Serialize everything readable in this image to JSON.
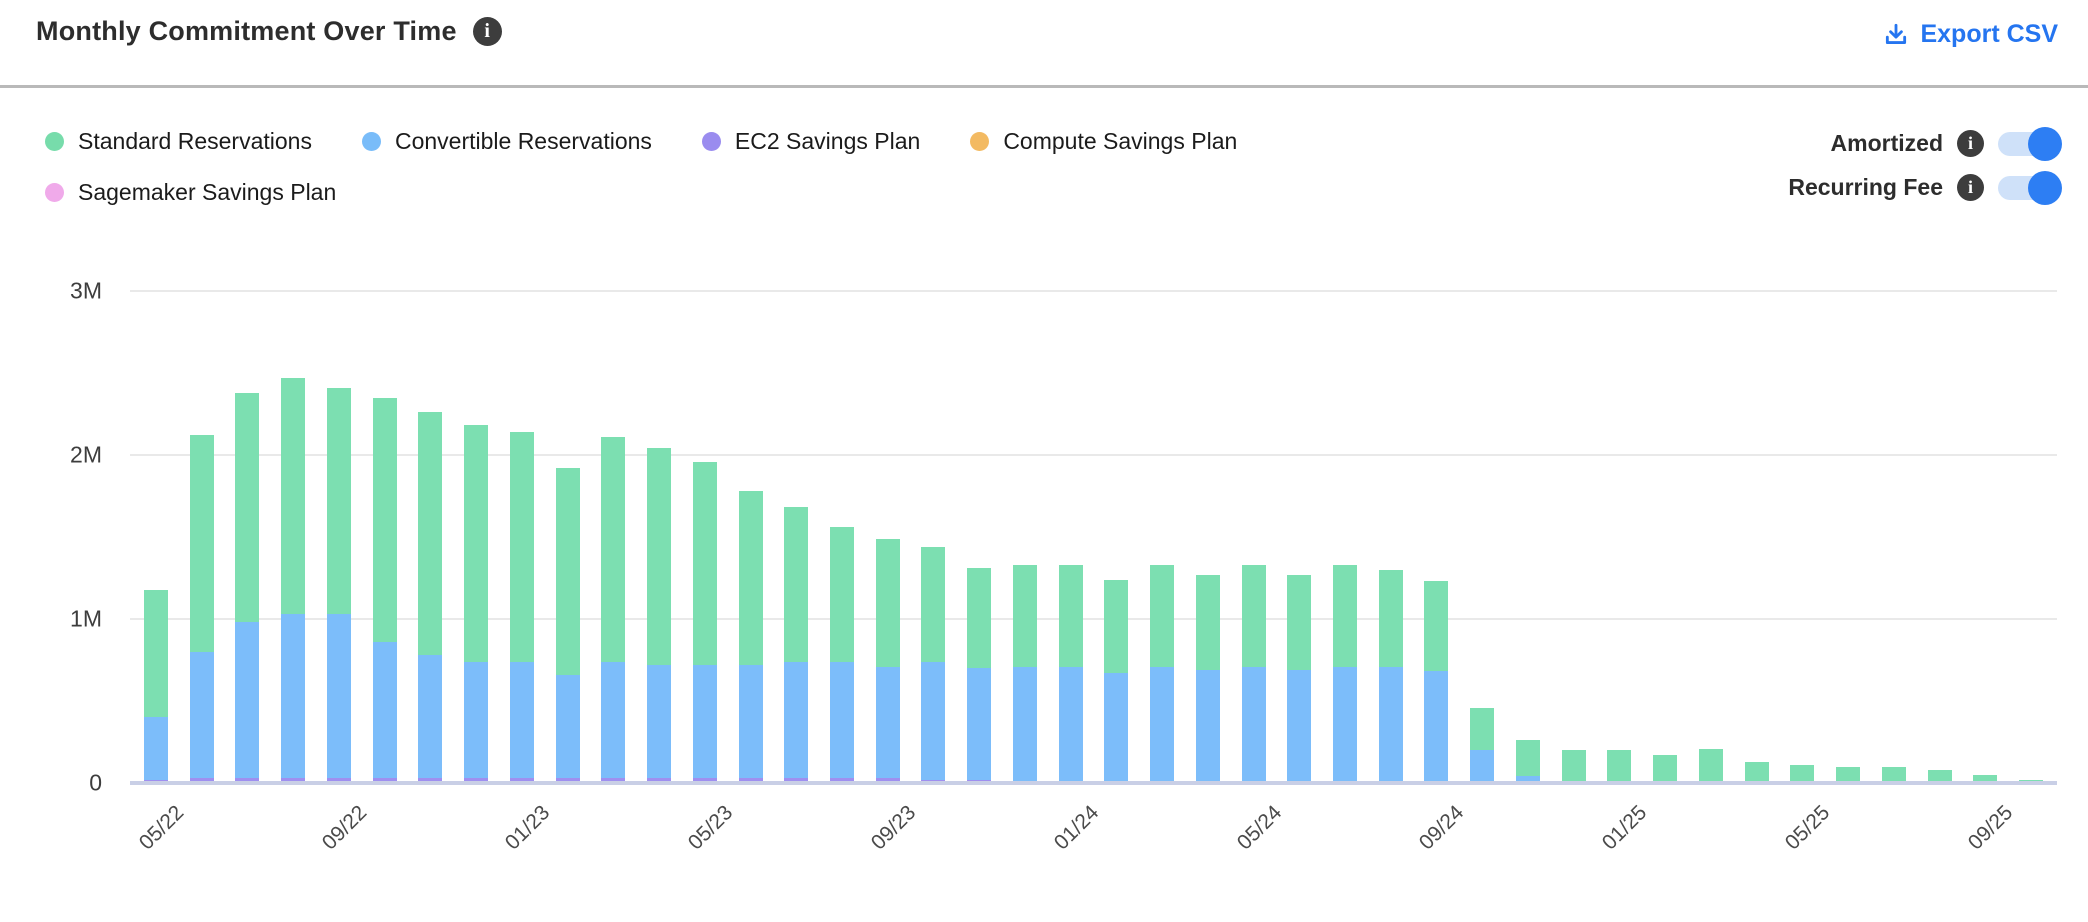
{
  "header": {
    "title": "Monthly Commitment Over Time",
    "export_label": "Export CSV"
  },
  "legend": [
    {
      "label": "Standard Reservations",
      "color": "#77dcab"
    },
    {
      "label": "Convertible Reservations",
      "color": "#79bcf9"
    },
    {
      "label": "EC2 Savings Plan",
      "color": "#9a8cef"
    },
    {
      "label": "Compute Savings Plan",
      "color": "#f3ba62"
    },
    {
      "label": "Sagemaker Savings Plan",
      "color": "#f0aaea"
    }
  ],
  "toggles": [
    {
      "label": "Amortized",
      "on": true
    },
    {
      "label": "Recurring Fee",
      "on": true
    }
  ],
  "toggle_colors": {
    "track": "#cfe1f9",
    "knob": "#2d7ef3"
  },
  "accent_colors": {
    "link_blue": "#2575f0",
    "info_icon_bg": "#3d3d3d"
  },
  "chart_data": {
    "type": "bar",
    "stacked": true,
    "values_unit": "millions",
    "ylim": [
      0,
      3000000
    ],
    "grid": true,
    "y_ticks": [
      {
        "label": "3M",
        "value": 3
      },
      {
        "label": "2M",
        "value": 2
      },
      {
        "label": "1M",
        "value": 1
      },
      {
        "label": "0",
        "value": 0
      }
    ],
    "x": [
      "05/22",
      "06/22",
      "07/22",
      "08/22",
      "09/22",
      "10/22",
      "11/22",
      "12/22",
      "01/23",
      "02/23",
      "03/23",
      "04/23",
      "05/23",
      "06/23",
      "07/23",
      "08/23",
      "09/23",
      "10/23",
      "11/23",
      "12/23",
      "01/24",
      "02/24",
      "03/24",
      "04/24",
      "05/24",
      "06/24",
      "07/24",
      "08/24",
      "09/24",
      "10/24",
      "11/24",
      "12/24",
      "01/25",
      "02/25",
      "03/25",
      "04/25",
      "05/25",
      "06/25",
      "07/25",
      "08/25",
      "09/25",
      "10/25"
    ],
    "x_tick_indices": [
      0,
      4,
      8,
      12,
      16,
      20,
      24,
      28,
      32,
      36,
      40
    ],
    "stack_order_note": "series listed bottom-to-top of stack",
    "series": [
      {
        "name": "EC2 Savings Plan",
        "color": "#9f8ff0",
        "values": [
          0.02,
          0.03,
          0.03,
          0.03,
          0.03,
          0.03,
          0.03,
          0.03,
          0.03,
          0.03,
          0.03,
          0.03,
          0.03,
          0.03,
          0.03,
          0.03,
          0.03,
          0.02,
          0.02,
          0,
          0,
          0,
          0,
          0,
          0,
          0,
          0,
          0,
          0,
          0,
          0,
          0,
          0,
          0,
          0,
          0,
          0,
          0,
          0,
          0,
          0,
          0
        ]
      },
      {
        "name": "Convertible Reservations",
        "color": "#7cbdfa",
        "values": [
          0.38,
          0.77,
          0.95,
          1.0,
          1.0,
          0.83,
          0.75,
          0.71,
          0.71,
          0.63,
          0.71,
          0.69,
          0.69,
          0.69,
          0.71,
          0.71,
          0.68,
          0.72,
          0.68,
          0.71,
          0.71,
          0.67,
          0.71,
          0.69,
          0.71,
          0.69,
          0.71,
          0.71,
          0.68,
          0.2,
          0.04,
          0,
          0,
          0,
          0,
          0,
          0,
          0,
          0,
          0,
          0,
          0
        ]
      },
      {
        "name": "Standard Reservations",
        "color": "#7cdfb1",
        "values": [
          0.78,
          1.32,
          1.4,
          1.44,
          1.38,
          1.49,
          1.48,
          1.44,
          1.4,
          1.26,
          1.37,
          1.32,
          1.24,
          1.06,
          0.94,
          0.82,
          0.78,
          0.7,
          0.61,
          0.62,
          0.62,
          0.57,
          0.62,
          0.58,
          0.62,
          0.58,
          0.62,
          0.59,
          0.55,
          0.26,
          0.22,
          0.2,
          0.2,
          0.17,
          0.21,
          0.13,
          0.11,
          0.1,
          0.1,
          0.08,
          0.05,
          0.02
        ]
      },
      {
        "name": "Compute Savings Plan",
        "color": "#f3ba62",
        "values": [
          0,
          0,
          0,
          0,
          0,
          0,
          0,
          0,
          0,
          0,
          0,
          0,
          0,
          0,
          0,
          0,
          0,
          0,
          0,
          0,
          0,
          0,
          0,
          0,
          0,
          0,
          0,
          0,
          0,
          0,
          0,
          0,
          0,
          0,
          0,
          0,
          0,
          0,
          0,
          0,
          0,
          0
        ]
      },
      {
        "name": "Sagemaker Savings Plan",
        "color": "#f0aaea",
        "values": [
          0,
          0,
          0,
          0,
          0,
          0,
          0,
          0,
          0,
          0,
          0,
          0,
          0,
          0,
          0,
          0,
          0,
          0,
          0,
          0,
          0,
          0,
          0,
          0,
          0,
          0,
          0,
          0,
          0,
          0,
          0,
          0,
          0,
          0,
          0,
          0,
          0,
          0,
          0,
          0,
          0,
          0
        ]
      }
    ]
  }
}
